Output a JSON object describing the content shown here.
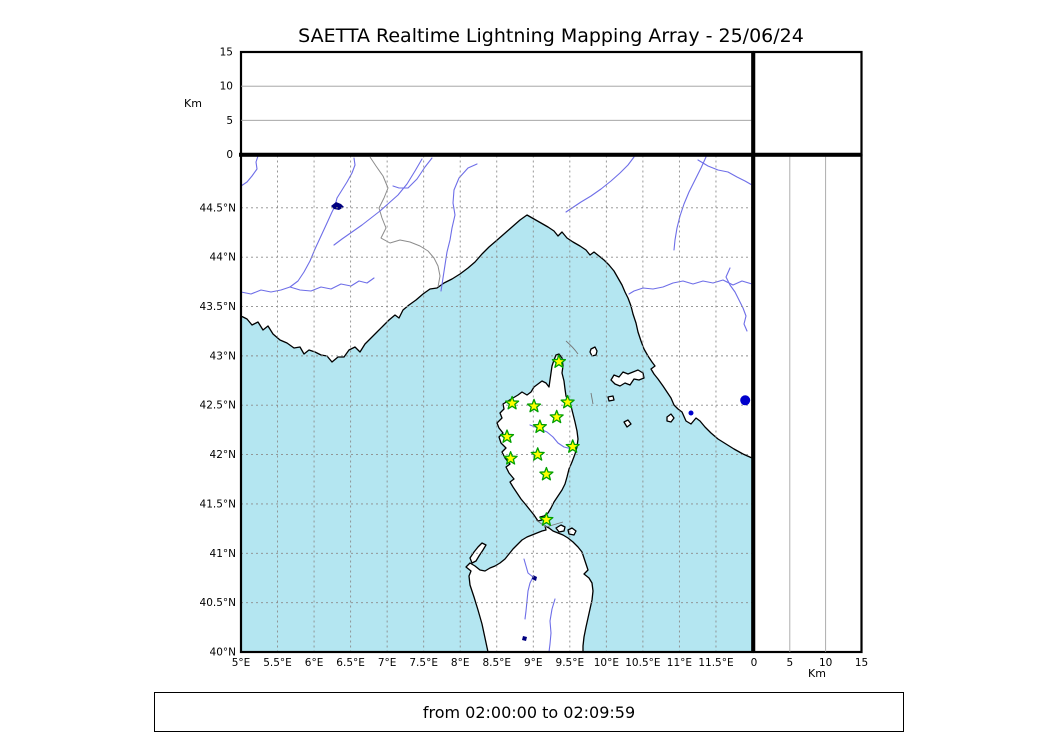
{
  "title": "SAETTA Realtime Lightning Mapping Array - 25/06/24",
  "footer": {
    "text": "from 02:00:00 to 02:09:59",
    "from": "02:00:00",
    "to": "02:09:59"
  },
  "altitude_axis": {
    "label": "Km",
    "ticks": [
      0,
      5,
      10,
      15
    ],
    "gridlines": [
      5,
      10
    ],
    "max": 15
  },
  "map_axes": {
    "lon": {
      "min": 5,
      "max": 12,
      "ticks": [
        {
          "v": 5,
          "label": "5°E"
        },
        {
          "v": 5.5,
          "label": "5.5°E"
        },
        {
          "v": 6,
          "label": "6°E"
        },
        {
          "v": 6.5,
          "label": "6.5°E"
        },
        {
          "v": 7,
          "label": "7°E"
        },
        {
          "v": 7.5,
          "label": "7.5°E"
        },
        {
          "v": 8,
          "label": "8°E"
        },
        {
          "v": 8.5,
          "label": "8.5°E"
        },
        {
          "v": 9,
          "label": "9°E"
        },
        {
          "v": 9.5,
          "label": "9.5°E"
        },
        {
          "v": 10,
          "label": "10°E"
        },
        {
          "v": 10.5,
          "label": "10.5°E"
        },
        {
          "v": 11,
          "label": "11°E"
        },
        {
          "v": 11.5,
          "label": "11.5°E"
        }
      ]
    },
    "lat": {
      "min": 40,
      "max": 45.03,
      "ticks": [
        {
          "v": 44.5,
          "label": "44.5°N"
        },
        {
          "v": 44,
          "label": "44°N"
        },
        {
          "v": 43.5,
          "label": "43.5°N"
        },
        {
          "v": 43,
          "label": "43°N"
        },
        {
          "v": 42.5,
          "label": "42.5°N"
        },
        {
          "v": 42,
          "label": "42°N"
        },
        {
          "v": 41.5,
          "label": "41.5°N"
        },
        {
          "v": 41,
          "label": "41°N"
        },
        {
          "v": 40.5,
          "label": "40.5°N"
        },
        {
          "v": 40,
          "label": "40°N"
        }
      ]
    }
  },
  "stations": [
    {
      "lon": 9.35,
      "lat": 42.94
    },
    {
      "lon": 8.71,
      "lat": 42.52
    },
    {
      "lon": 9.01,
      "lat": 42.49
    },
    {
      "lon": 9.47,
      "lat": 42.53
    },
    {
      "lon": 9.32,
      "lat": 42.38
    },
    {
      "lon": 9.09,
      "lat": 42.28
    },
    {
      "lon": 8.64,
      "lat": 42.18
    },
    {
      "lon": 9.54,
      "lat": 42.08
    },
    {
      "lon": 8.69,
      "lat": 41.96
    },
    {
      "lon": 9.06,
      "lat": 42.0
    },
    {
      "lon": 9.18,
      "lat": 41.8
    },
    {
      "lon": 9.18,
      "lat": 41.34
    }
  ],
  "detections": [
    {
      "lon": 11.9,
      "lat": 42.55
    }
  ],
  "colors": {
    "sea": "#b4e6f1",
    "land": "#ffffff",
    "coast": "#000000",
    "river": "#6e6ee8",
    "border": "#8c8c8c",
    "grid": "#8c8c8c",
    "lake": "#000080",
    "station_fill": "#ffff00",
    "station_stroke": "#00a000",
    "detection": "#0000cc"
  }
}
